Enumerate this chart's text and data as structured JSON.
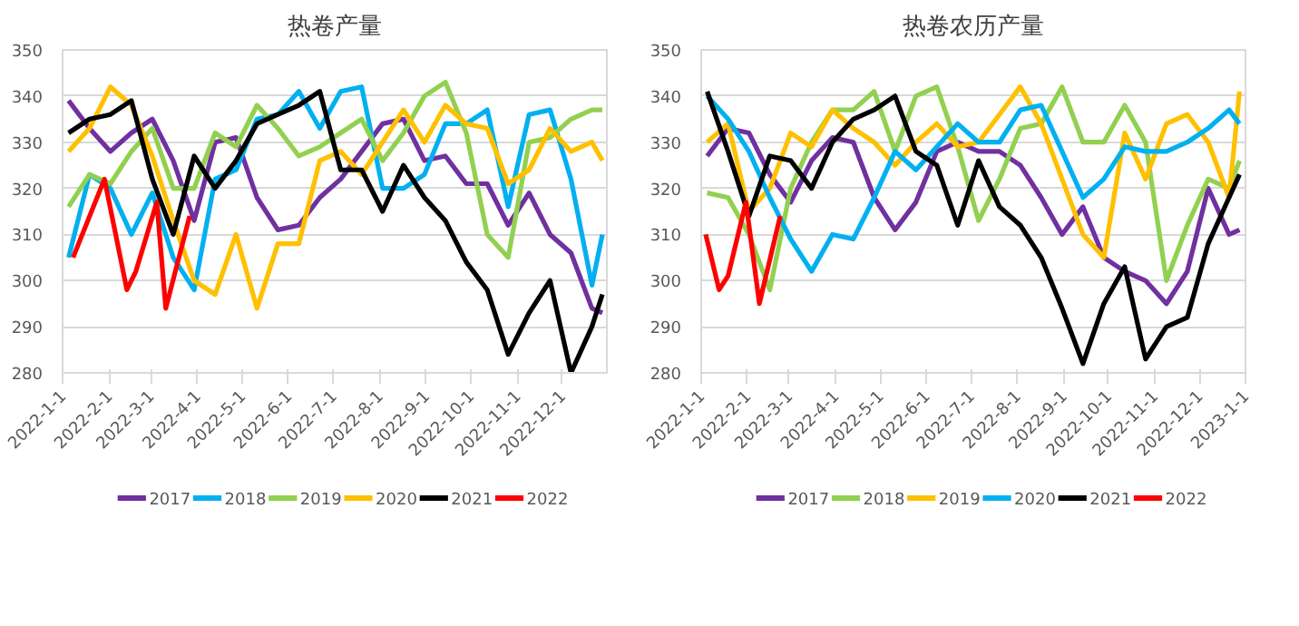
{
  "chart_data": [
    {
      "type": "line",
      "title": "热卷产量",
      "xlim": [
        "2022-01-01",
        "2022-12-31"
      ],
      "ylim": [
        280,
        350
      ],
      "yticks": [
        280,
        290,
        300,
        310,
        320,
        330,
        340,
        350
      ],
      "xticks": [
        {
          "value": "2022-01-01",
          "label": "2022-1-1"
        },
        {
          "value": "2022-02-01",
          "label": "2022-2-1"
        },
        {
          "value": "2022-03-01",
          "label": "2022-3-1"
        },
        {
          "value": "2022-04-01",
          "label": "2022-4-1"
        },
        {
          "value": "2022-05-01",
          "label": "2022-5-1"
        },
        {
          "value": "2022-06-01",
          "label": "2022-6-1"
        },
        {
          "value": "2022-07-01",
          "label": "2022-7-1"
        },
        {
          "value": "2022-08-01",
          "label": "2022-8-1"
        },
        {
          "value": "2022-09-01",
          "label": "2022-9-1"
        },
        {
          "value": "2022-10-01",
          "label": "2022-10-1"
        },
        {
          "value": "2022-11-01",
          "label": "2022-11-1"
        },
        {
          "value": "2022-12-01",
          "label": "2022-12-1"
        }
      ],
      "grid": "y",
      "legend": "bottom",
      "line_style": "solid",
      "x": [
        "2022-01-05",
        "2022-01-19",
        "2022-02-02",
        "2022-02-16",
        "2022-03-02",
        "2022-03-16",
        "2022-03-30",
        "2022-04-13",
        "2022-04-27",
        "2022-05-11",
        "2022-05-25",
        "2022-06-08",
        "2022-06-22",
        "2022-07-06",
        "2022-07-20",
        "2022-08-03",
        "2022-08-17",
        "2022-08-31",
        "2022-09-14",
        "2022-09-28",
        "2022-10-12",
        "2022-10-26",
        "2022-11-09",
        "2022-11-23",
        "2022-12-07",
        "2022-12-21",
        "2022-12-28"
      ],
      "series": [
        {
          "name": "2017",
          "color": "#7030a0",
          "values": [
            339,
            333,
            328,
            332,
            335,
            326,
            313,
            330,
            331,
            318,
            311,
            312,
            318,
            322,
            328,
            334,
            335,
            326,
            327,
            321,
            321,
            312,
            319,
            310,
            306,
            294,
            293
          ]
        },
        {
          "name": "2018",
          "color": "#00b0f0",
          "values": [
            305,
            323,
            320,
            310,
            319,
            305,
            298,
            322,
            324,
            335,
            336,
            341,
            333,
            341,
            342,
            320,
            320,
            323,
            334,
            334,
            337,
            316,
            336,
            337,
            322,
            299,
            310
          ]
        },
        {
          "name": "2019",
          "color": "#92d050",
          "values": [
            316,
            323,
            321,
            328,
            333,
            320,
            320,
            332,
            329,
            338,
            333,
            327,
            329,
            332,
            335,
            326,
            332,
            340,
            343,
            332,
            310,
            305,
            330,
            331,
            335,
            337,
            337
          ]
        },
        {
          "name": "2020",
          "color": "#ffc000",
          "values": [
            328,
            333,
            342,
            338,
            327,
            313,
            300,
            297,
            310,
            294,
            308,
            308,
            326,
            328,
            323,
            330,
            337,
            330,
            338,
            334,
            333,
            321,
            324,
            333,
            328,
            330,
            326
          ]
        },
        {
          "name": "2021",
          "color": "#000000",
          "values": [
            332,
            335,
            336,
            339,
            322,
            310,
            327,
            320,
            326,
            334,
            336,
            338,
            341,
            324,
            324,
            315,
            325,
            318,
            313,
            304,
            298,
            284,
            293,
            300,
            280,
            290,
            297
          ]
        },
        {
          "name": "2022",
          "color": "#ff0000",
          "x": [
            "2022-01-08",
            "2022-01-29",
            "2022-02-13",
            "2022-02-19",
            "2022-03-05",
            "2022-03-11",
            "2022-03-27"
          ],
          "values": [
            305,
            322,
            298,
            302,
            317,
            294,
            314
          ]
        }
      ]
    },
    {
      "type": "line",
      "title": "热卷农历产量",
      "xlim": [
        "2022-01-01",
        "2023-01-01"
      ],
      "ylim": [
        280,
        350
      ],
      "yticks": [
        280,
        290,
        300,
        310,
        320,
        330,
        340,
        350
      ],
      "xticks": [
        {
          "value": "2022-01-01",
          "label": "2022-1-1"
        },
        {
          "value": "2022-02-01",
          "label": "2022-2-1"
        },
        {
          "value": "2022-03-01",
          "label": "2022-3-1"
        },
        {
          "value": "2022-04-01",
          "label": "2022-4-1"
        },
        {
          "value": "2022-05-01",
          "label": "2022-5-1"
        },
        {
          "value": "2022-06-01",
          "label": "2022-6-1"
        },
        {
          "value": "2022-07-01",
          "label": "2022-7-1"
        },
        {
          "value": "2022-08-01",
          "label": "2022-8-1"
        },
        {
          "value": "2022-09-01",
          "label": "2022-9-1"
        },
        {
          "value": "2022-10-01",
          "label": "2022-10-1"
        },
        {
          "value": "2022-11-01",
          "label": "2022-11-1"
        },
        {
          "value": "2022-12-01",
          "label": "2022-12-1"
        },
        {
          "value": "2023-01-01",
          "label": "2023-1-1"
        }
      ],
      "grid": "y",
      "legend": "bottom",
      "line_style": "solid",
      "x": [
        "2022-01-05",
        "2022-01-19",
        "2022-02-02",
        "2022-02-16",
        "2022-03-02",
        "2022-03-16",
        "2022-03-30",
        "2022-04-13",
        "2022-04-27",
        "2022-05-11",
        "2022-05-25",
        "2022-06-08",
        "2022-06-22",
        "2022-07-06",
        "2022-07-20",
        "2022-08-03",
        "2022-08-17",
        "2022-08-31",
        "2022-09-14",
        "2022-09-28",
        "2022-10-12",
        "2022-10-26",
        "2022-11-09",
        "2022-11-23",
        "2022-12-07",
        "2022-12-21",
        "2022-12-28"
      ],
      "series": [
        {
          "name": "2017",
          "color": "#7030a0",
          "values": [
            327,
            333,
            332,
            323,
            317,
            326,
            331,
            330,
            318,
            311,
            317,
            328,
            330,
            328,
            328,
            325,
            318,
            310,
            316,
            305,
            302,
            300,
            295,
            302,
            320,
            310,
            311
          ]
        },
        {
          "name": "2018",
          "color": "#92d050",
          "values": [
            319,
            318,
            310,
            298,
            320,
            330,
            337,
            337,
            341,
            328,
            340,
            342,
            329,
            313,
            322,
            333,
            334,
            342,
            330,
            330,
            338,
            330,
            300,
            312,
            322,
            320,
            326
          ]
        },
        {
          "name": "2019",
          "color": "#ffc000",
          "values": [
            330,
            334,
            315,
            320,
            332,
            329,
            337,
            333,
            330,
            325,
            330,
            334,
            329,
            330,
            336,
            342,
            334,
            322,
            310,
            305,
            332,
            322,
            334,
            336,
            330,
            318,
            341
          ]
        },
        {
          "name": "2020",
          "color": "#00b0f0",
          "values": [
            340,
            335,
            328,
            318,
            309,
            302,
            310,
            309,
            318,
            328,
            324,
            329,
            334,
            330,
            330,
            337,
            338,
            328,
            318,
            322,
            329,
            328,
            328,
            330,
            333,
            337,
            334
          ]
        },
        {
          "name": "2021",
          "color": "#000000",
          "values": [
            341,
            328,
            314,
            327,
            326,
            320,
            330,
            335,
            337,
            340,
            328,
            325,
            312,
            326,
            316,
            312,
            305,
            294,
            282,
            295,
            303,
            283,
            290,
            292,
            308,
            318,
            323
          ]
        },
        {
          "name": "2022",
          "color": "#ff0000",
          "x": [
            "2022-01-04",
            "2022-01-13",
            "2022-01-19",
            "2022-01-31",
            "2022-02-09",
            "2022-02-23"
          ],
          "values": [
            310,
            298,
            301,
            317,
            295,
            314
          ]
        }
      ]
    }
  ]
}
